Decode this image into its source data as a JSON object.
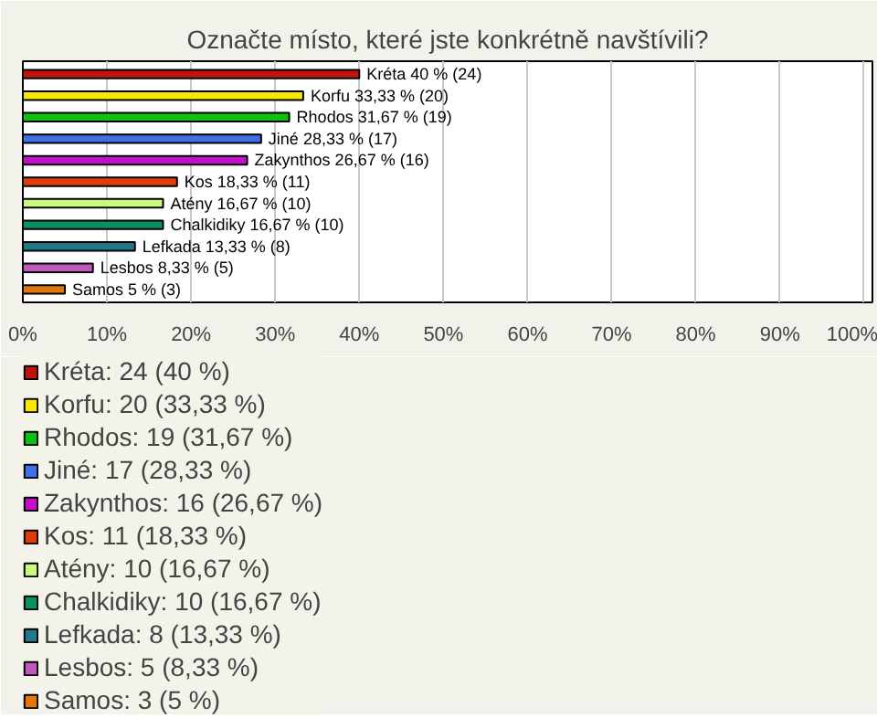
{
  "chart_data": {
    "type": "bar",
    "orientation": "horizontal",
    "stacked": true,
    "title": "Označte místo, které jste konkrétně navštívili?",
    "categories": [
      null,
      null,
      null,
      null,
      null,
      null,
      null,
      null,
      null,
      null,
      null
    ],
    "series": [
      {
        "name": "Kréta: 24 (40 %)",
        "color": "#c0140c",
        "values": [
          40,
          null,
          null,
          null,
          null,
          null,
          null,
          null,
          null,
          null,
          null
        ],
        "value_labels": [
          "Kréta 40 % (24)",
          null,
          null,
          null,
          null,
          null,
          null,
          null,
          null,
          null,
          null
        ]
      },
      {
        "name": "Korfu: 20 (33,33 %)",
        "color": "#f8e800",
        "values": [
          null,
          33.33,
          null,
          null,
          null,
          null,
          null,
          null,
          null,
          null,
          null
        ],
        "value_labels": [
          null,
          "Korfu 33,33 % (20)",
          null,
          null,
          null,
          null,
          null,
          null,
          null,
          null,
          null
        ]
      },
      {
        "name": "Rhodos: 19 (31,67 %)",
        "color": "#10c010",
        "values": [
          null,
          null,
          31.67,
          null,
          null,
          null,
          null,
          null,
          null,
          null,
          null
        ],
        "value_labels": [
          null,
          null,
          "Rhodos 31,67 % (19)",
          null,
          null,
          null,
          null,
          null,
          null,
          null,
          null
        ]
      },
      {
        "name": "Jiné: 17 (28,33 %)",
        "color": "#4070e8",
        "values": [
          null,
          null,
          null,
          28.33,
          null,
          null,
          null,
          null,
          null,
          null,
          null
        ],
        "value_labels": [
          null,
          null,
          null,
          "Jiné 28,33 % (17)",
          null,
          null,
          null,
          null,
          null,
          null,
          null
        ]
      },
      {
        "name": "Zakynthos: 16 (26,67 %)",
        "color": "#c010c8",
        "values": [
          null,
          null,
          null,
          null,
          26.67,
          null,
          null,
          null,
          null,
          null,
          null
        ],
        "value_labels": [
          null,
          null,
          null,
          null,
          "Zakynthos 26,67 % (16)",
          null,
          null,
          null,
          null,
          null,
          null
        ]
      },
      {
        "name": "Kos: 11 (18,33 %)",
        "color": "#e03c08",
        "values": [
          null,
          null,
          null,
          null,
          null,
          18.33,
          null,
          null,
          null,
          null,
          null
        ],
        "value_labels": [
          null,
          null,
          null,
          null,
          null,
          "Kos 18,33 % (11)",
          null,
          null,
          null,
          null,
          null
        ]
      },
      {
        "name": "Atény: 10 (16,67 %)",
        "color": "#c8f880",
        "values": [
          null,
          null,
          null,
          null,
          null,
          null,
          16.67,
          null,
          null,
          null,
          null
        ],
        "value_labels": [
          null,
          null,
          null,
          null,
          null,
          null,
          "Atény 16,67 % (10)",
          null,
          null,
          null,
          null
        ]
      },
      {
        "name": "Chalkidiky: 10 (16,67 %)",
        "color": "#0c9060",
        "values": [
          null,
          null,
          null,
          null,
          null,
          null,
          null,
          16.67,
          null,
          null,
          null
        ],
        "value_labels": [
          null,
          null,
          null,
          null,
          null,
          null,
          null,
          "Chalkidiky 16,67 % (10)",
          null,
          null,
          null
        ]
      },
      {
        "name": "Lefkada: 8 (13,33 %)",
        "color": "#207888",
        "values": [
          null,
          null,
          null,
          null,
          null,
          null,
          null,
          null,
          13.33,
          null,
          null
        ],
        "value_labels": [
          null,
          null,
          null,
          null,
          null,
          null,
          null,
          null,
          "Lefkada 13,33 % (8)",
          null,
          null
        ]
      },
      {
        "name": "Lesbos: 5 (8,33 %)",
        "color": "#c058c0",
        "values": [
          null,
          null,
          null,
          null,
          null,
          null,
          null,
          null,
          null,
          8.33,
          null
        ],
        "value_labels": [
          null,
          null,
          null,
          null,
          null,
          null,
          null,
          null,
          null,
          "Lesbos 8,33 % (5)",
          null
        ]
      },
      {
        "name": "Samos: 3 (5 %)",
        "color": "#e07808",
        "values": [
          null,
          null,
          null,
          null,
          null,
          null,
          null,
          null,
          null,
          null,
          5
        ],
        "value_labels": [
          null,
          null,
          null,
          null,
          null,
          null,
          null,
          null,
          null,
          null,
          "Samos 5 % (3)"
        ]
      }
    ],
    "xlim": [
      0,
      101
    ],
    "xticks": [
      {
        "value": 0,
        "label": "0%"
      },
      {
        "value": 10,
        "label": "10%"
      },
      {
        "value": 20,
        "label": "20%"
      },
      {
        "value": 30,
        "label": "30%"
      },
      {
        "value": 40,
        "label": "40%"
      },
      {
        "value": 50,
        "label": "50%"
      },
      {
        "value": 60,
        "label": "60%"
      },
      {
        "value": 70,
        "label": "70%"
      },
      {
        "value": 80,
        "label": "80%"
      },
      {
        "value": 90,
        "label": "90%"
      },
      {
        "value": 100,
        "label": "100%"
      }
    ],
    "grid": "x",
    "legend": "bottom"
  }
}
